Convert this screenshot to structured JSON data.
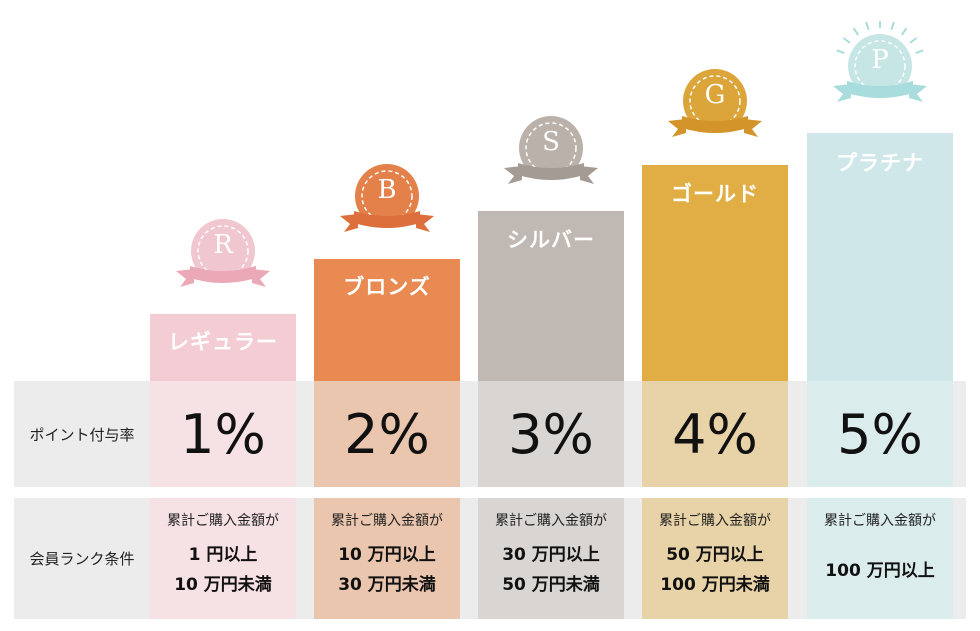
{
  "rows": {
    "points_label": "ポイント付与率",
    "condition_label": "会員ランク条件"
  },
  "condition_heading": "累計ご購入金額が",
  "ranks": [
    {
      "letter": "R",
      "name": "レギュラー",
      "rate": "1%",
      "line1": "1 円以上",
      "line2": "10 万円未満",
      "color_top": "#f4cdd4",
      "color_lower": "#f6e1e5",
      "medal": "#f1c7cf",
      "ribbon": "#eba9b7"
    },
    {
      "letter": "B",
      "name": "ブロンズ",
      "rate": "2%",
      "line1": "10 万円以上",
      "line2": "30 万円未満",
      "color_top": "#e88a52",
      "color_lower": "#ebc6ae",
      "medal": "#e4804a",
      "ribbon": "#dc6f3b"
    },
    {
      "letter": "S",
      "name": "シルバー",
      "rate": "3%",
      "line1": "30 万円以上",
      "line2": "50 万円未満",
      "color_top": "#c0b8b3",
      "color_lower": "#d9d5d2",
      "medal": "#bbb1ab",
      "ribbon": "#a59b95"
    },
    {
      "letter": "G",
      "name": "ゴールド",
      "rate": "4%",
      "line1": "50 万円以上",
      "line2": "100 万円未満",
      "color_top": "#e0ae45",
      "color_lower": "#e7d3a7",
      "medal": "#dca53a",
      "ribbon": "#d3952a"
    },
    {
      "letter": "P",
      "name": "プラチナ",
      "rate": "5%",
      "line1": "100 万円以上",
      "line2": "",
      "color_top": "#cfe7e8",
      "color_lower": "#dbecec",
      "medal": "#c6e6e6",
      "ribbon": "#a9dcdd"
    }
  ]
}
